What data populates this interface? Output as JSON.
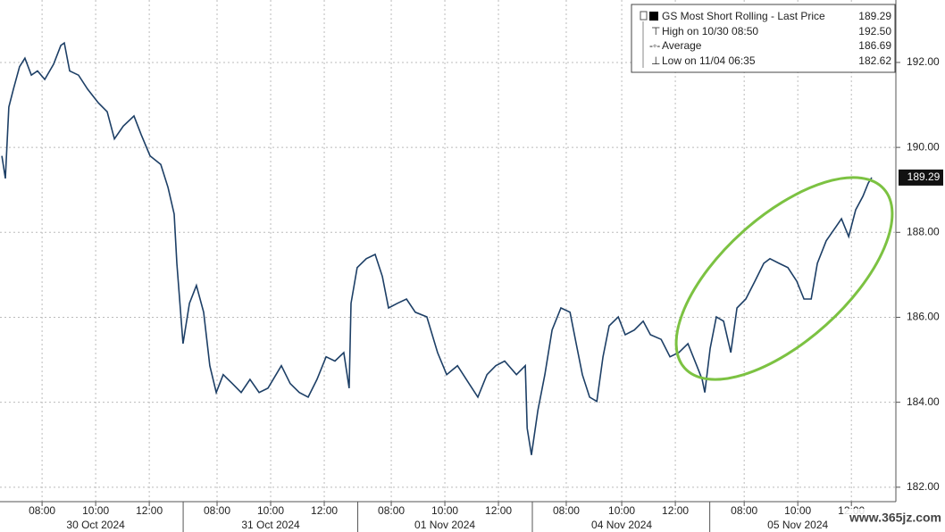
{
  "chart_data": {
    "type": "line",
    "series": [
      {
        "name": "GS Most Short Rolling - Last Price",
        "color": "#1d3f66",
        "x": [
          0.07,
          0.2,
          0.33,
          0.5,
          0.73,
          0.93,
          1.17,
          1.4,
          1.67,
          2,
          2.27,
          2.4,
          2.6,
          2.93,
          3.27,
          3.67,
          4,
          4.27,
          4.6,
          5,
          5.27,
          5.6,
          6,
          6.27,
          6.5,
          6.6,
          6.83,
          7.07,
          7.33,
          7.6,
          7.83,
          8.07,
          8.33,
          8.67,
          9,
          9.33,
          9.67,
          10,
          10.5,
          10.83,
          11.17,
          11.5,
          11.83,
          12.17,
          12.5,
          12.83,
          13.03,
          13.1,
          13.33,
          13.67,
          14,
          14.27,
          14.5,
          14.83,
          15.17,
          15.5,
          15.93,
          16.33,
          16.67,
          17.07,
          17.5,
          17.83,
          18.17,
          18.5,
          18.83,
          19.27,
          19.6,
          19.67,
          19.83,
          20.07,
          20.33,
          20.6,
          20.93,
          21.27,
          21.5,
          21.73,
          22,
          22.27,
          22.5,
          22.73,
          23.07,
          23.33,
          23.67,
          24,
          24.27,
          24.67,
          25,
          25.33,
          25.67,
          26,
          26.2,
          26.3,
          26.5,
          26.73,
          27,
          27.27,
          27.5,
          27.83,
          28.17,
          28.5,
          28.73,
          29.07,
          29.4,
          29.73,
          30,
          30.27,
          30.5,
          30.83,
          31.17,
          31.4,
          31.67,
          31.93,
          32.2,
          32.4,
          32.53
        ],
        "values": [
          189.8,
          189.27,
          190.95,
          191.37,
          191.9,
          192.1,
          191.7,
          191.8,
          191.6,
          191.96,
          192.4,
          192.46,
          191.8,
          191.7,
          191.37,
          191.05,
          190.84,
          190.2,
          190.5,
          190.74,
          190.3,
          189.8,
          189.6,
          189.06,
          188.43,
          187.27,
          185.38,
          186.33,
          186.75,
          186.12,
          184.86,
          184.23,
          184.65,
          184.44,
          184.23,
          184.54,
          184.23,
          184.33,
          184.86,
          184.44,
          184.23,
          184.12,
          184.54,
          185.07,
          184.97,
          185.17,
          184.33,
          186.33,
          187.17,
          187.38,
          187.48,
          186.96,
          186.22,
          186.33,
          186.43,
          186.12,
          186.01,
          185.17,
          184.65,
          184.86,
          184.44,
          184.12,
          184.65,
          184.86,
          184.97,
          184.65,
          184.86,
          183.39,
          182.76,
          183.81,
          184.65,
          185.7,
          186.22,
          186.12,
          185.38,
          184.65,
          184.12,
          184.02,
          185.07,
          185.8,
          186.01,
          185.59,
          185.7,
          185.91,
          185.59,
          185.48,
          185.07,
          185.17,
          185.38,
          184.86,
          184.54,
          184.23,
          185.27,
          186.01,
          185.91,
          185.17,
          186.22,
          186.43,
          186.85,
          187.27,
          187.38,
          187.27,
          187.17,
          186.85,
          186.43,
          186.43,
          187.27,
          187.8,
          188.11,
          188.32,
          187.9,
          188.53,
          188.85,
          189.16,
          189.29
        ]
      }
    ],
    "legend": [
      {
        "label": "GS Most Short Rolling - Last Price",
        "value": "189.29"
      },
      {
        "label": "High on 10/30 08:50",
        "value": "192.50"
      },
      {
        "label": "Average",
        "value": "186.69"
      },
      {
        "label": "Low on 11/04 06:35",
        "value": "182.62"
      }
    ],
    "xlim": [
      0,
      33.43
    ],
    "xticks": [
      {
        "value": 1.57,
        "label": "08:00"
      },
      {
        "value": 3.57,
        "label": "10:00"
      },
      {
        "value": 5.57,
        "label": "12:00"
      },
      {
        "value": 8.1,
        "label": "08:00"
      },
      {
        "value": 10.1,
        "label": "10:00"
      },
      {
        "value": 12.1,
        "label": "12:00"
      },
      {
        "value": 14.6,
        "label": "08:00"
      },
      {
        "value": 16.6,
        "label": "10:00"
      },
      {
        "value": 18.6,
        "label": "12:00"
      },
      {
        "value": 21.13,
        "label": "08:00"
      },
      {
        "value": 23.2,
        "label": "10:00"
      },
      {
        "value": 25.2,
        "label": "12:00"
      },
      {
        "value": 27.77,
        "label": "08:00"
      },
      {
        "value": 29.77,
        "label": "10:00"
      },
      {
        "value": 31.77,
        "label": "12:00"
      }
    ],
    "days": [
      "30 Oct 2024",
      "31 Oct 2024",
      "01 Nov 2024",
      "04 Nov 2024",
      "05 Nov 2024"
    ],
    "ylim": [
      181.66,
      193.47
    ],
    "yticks": [
      {
        "value": 182,
        "label": "182.00"
      },
      {
        "value": 184,
        "label": "184.00"
      },
      {
        "value": 186,
        "label": "186.00"
      },
      {
        "value": 188,
        "label": "188.00"
      },
      {
        "value": 190,
        "label": "190.00"
      },
      {
        "value": 192,
        "label": "192.00"
      }
    ],
    "grid": true,
    "watermark": "www.365jz.com"
  }
}
